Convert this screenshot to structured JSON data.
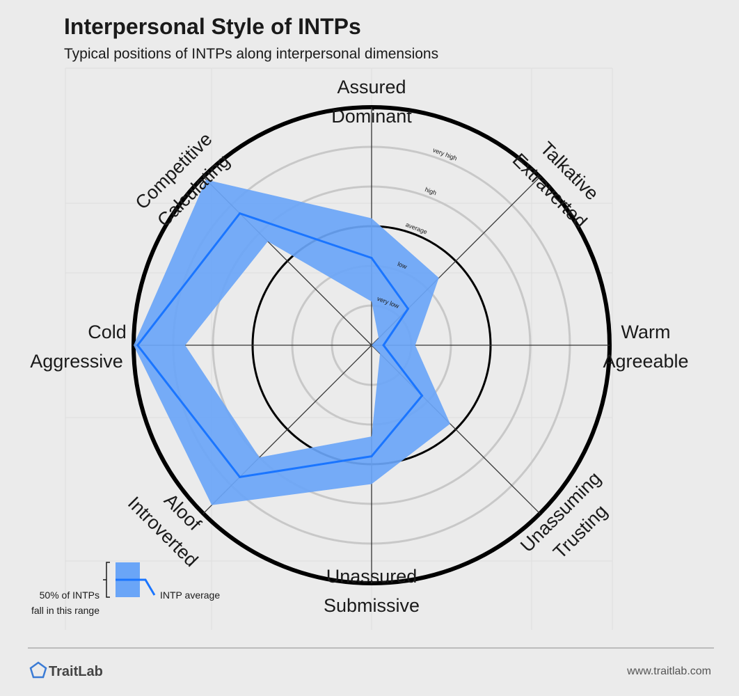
{
  "header": {
    "title": "Interpersonal Style of INTPs",
    "subtitle": "Typical positions of INTPs along interpersonal dimensions"
  },
  "chart_data": {
    "type": "radar",
    "title": "Interpersonal Style of INTPs",
    "subtitle": "Typical positions of INTPs along interpersonal dimensions",
    "scale_max": 6,
    "rings": [
      {
        "value": 1,
        "label": "very low"
      },
      {
        "value": 2,
        "label": "low"
      },
      {
        "value": 3,
        "label": "average"
      },
      {
        "value": 4,
        "label": "high"
      },
      {
        "value": 5,
        "label": "very high"
      }
    ],
    "axes": [
      {
        "name": "assured-dominant",
        "lines": [
          "Assured",
          "Dominant"
        ],
        "angle_deg": 90,
        "average": 2.2,
        "range_low": 1.1,
        "range_high": 3.2
      },
      {
        "name": "talkative-extraverted",
        "lines": [
          "Talkative",
          "Extraverted"
        ],
        "angle_deg": 45,
        "average": 1.3,
        "range_low": 0.25,
        "range_high": 2.4
      },
      {
        "name": "warm-agreeable",
        "lines": [
          "Warm",
          "Agreeable"
        ],
        "angle_deg": 0,
        "average": 0.3,
        "range_low": 0.0,
        "range_high": 1.1
      },
      {
        "name": "unassuming-trusting",
        "lines": [
          "Unassuming",
          "Trusting"
        ],
        "angle_deg": -45,
        "average": 1.8,
        "range_low": 0.3,
        "range_high": 2.8
      },
      {
        "name": "unassured-submissive",
        "lines": [
          "Unassured",
          "Submissive"
        ],
        "angle_deg": -90,
        "average": 2.8,
        "range_low": 2.3,
        "range_high": 3.5
      },
      {
        "name": "aloof-introverted",
        "lines": [
          "Aloof",
          "Introverted"
        ],
        "angle_deg": -135,
        "average": 4.7,
        "range_low": 4.0,
        "range_high": 5.7
      },
      {
        "name": "cold-aggressive",
        "lines": [
          "Cold",
          "Aggressive"
        ],
        "angle_deg": 180,
        "average": 5.9,
        "range_low": 4.7,
        "range_high": 6.0
      },
      {
        "name": "competitive-calculating",
        "lines": [
          "Competitive",
          "Calculating"
        ],
        "angle_deg": 135,
        "average": 4.7,
        "range_low": 3.7,
        "range_high": 5.9
      }
    ],
    "series": [
      {
        "name": "INTP average",
        "color": "#1a75ff"
      },
      {
        "name": "50% of INTPs fall in this range",
        "color": "#6aa5f7"
      }
    ],
    "legend": {
      "range_lines": [
        "50% of INTPs",
        "fall in this range"
      ],
      "average_label": "INTP average",
      "placement": "bottom-left"
    }
  },
  "footer": {
    "brand": "TraitLab",
    "url": "www.traitlab.com"
  },
  "colors": {
    "background": "#ebebeb",
    "band": "#6aa5f7",
    "line": "#1a75ff",
    "ring": "#c8c8c8",
    "outer": "#000000",
    "brand_icon": "#3a7bd5"
  }
}
